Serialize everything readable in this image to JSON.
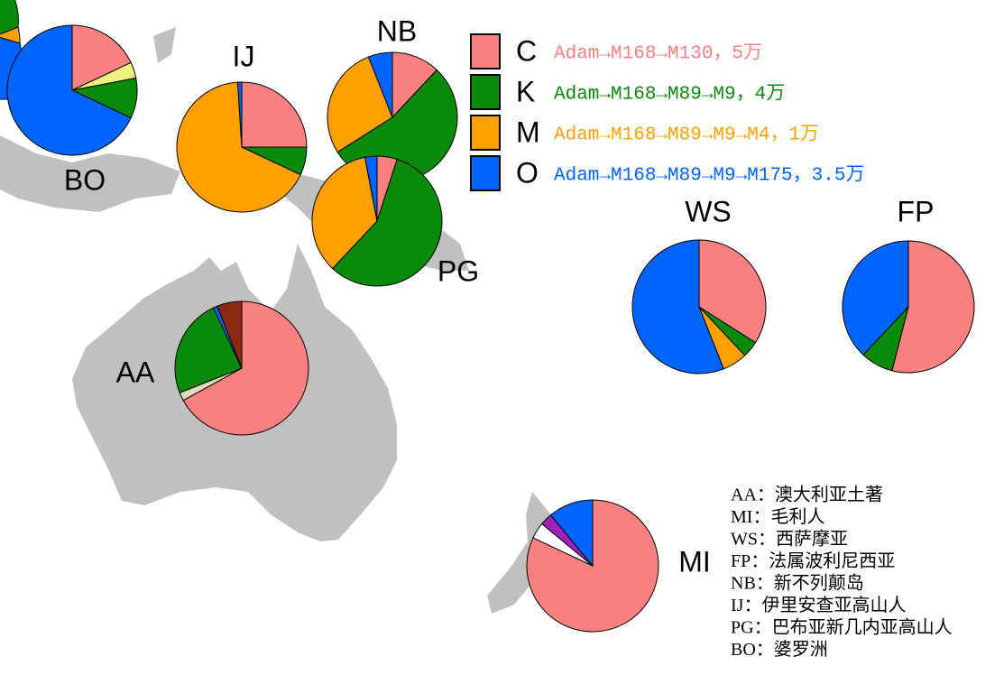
{
  "chart_data": [
    {
      "type": "pie",
      "title": "BO",
      "values": [
        18,
        4,
        10,
        68
      ],
      "colors": [
        "#f98080",
        "#f0f080",
        "#0a8a0a",
        "#0064ff"
      ]
    },
    {
      "type": "pie",
      "title": "IJ",
      "values": [
        25,
        7,
        67,
        1
      ],
      "colors": [
        "#f98080",
        "#0a8a0a",
        "#ff9f00",
        "#0064ff"
      ]
    },
    {
      "type": "pie",
      "title": "NB",
      "values": [
        12,
        54,
        28,
        6
      ],
      "colors": [
        "#f98080",
        "#0a8a0a",
        "#ff9f00",
        "#0064ff"
      ]
    },
    {
      "type": "pie",
      "title": "PG",
      "values": [
        5,
        57,
        35,
        3
      ],
      "colors": [
        "#f98080",
        "#0a8a0a",
        "#ff9f00",
        "#0064ff"
      ]
    },
    {
      "type": "pie",
      "title": "AA",
      "values": [
        67,
        2,
        24,
        1,
        6
      ],
      "colors": [
        "#f98080",
        "#e0dbb8",
        "#0a8a0a",
        "#0064ff",
        "#8b2a10"
      ]
    },
    {
      "type": "pie",
      "title": "WS",
      "values": [
        34,
        4,
        6,
        56
      ],
      "colors": [
        "#f98080",
        "#0a8a0a",
        "#ff9f00",
        "#0064ff"
      ]
    },
    {
      "type": "pie",
      "title": "FP",
      "values": [
        54,
        8,
        38
      ],
      "colors": [
        "#f98080",
        "#0a8a0a",
        "#0064ff"
      ]
    },
    {
      "type": "pie",
      "title": "MI",
      "values": [
        82,
        4,
        3,
        11
      ],
      "colors": [
        "#f98080",
        "#ffffff",
        "#a020c0",
        "#0064ff"
      ]
    }
  ],
  "legend": [
    {
      "label": "C",
      "text": "Adam→M168→M130，5万",
      "color": "#f98080"
    },
    {
      "label": "K",
      "text": "Adam→M168→M89→M9，4万",
      "color": "#0a8a0a"
    },
    {
      "label": "M",
      "text": "Adam→M168→M89→M9→M4，1万",
      "color": "#ff9f00"
    },
    {
      "label": "O",
      "text": "Adam→M168→M89→M9→M175，3.5万",
      "color": "#0064ff"
    }
  ],
  "key": [
    "AA：澳大利亚土著",
    "MI：毛利人",
    "WS：西萨摩亚",
    "FP：法属波利尼西亚",
    "NB：新不列颠岛",
    "IJ：伊里安查亚高山人",
    "PG：巴布亚新几内亚高山人",
    "BO：婆罗洲"
  ]
}
